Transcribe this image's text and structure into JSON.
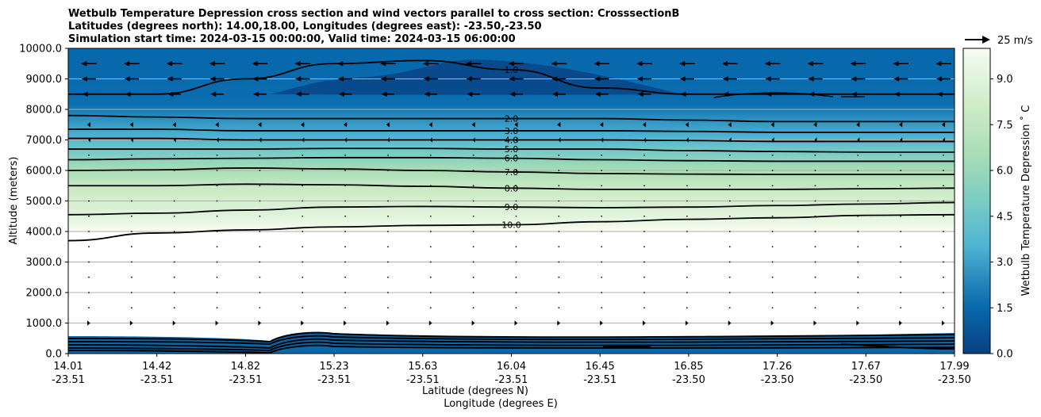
{
  "chart_data": {
    "type": "contour",
    "title_lines": [
      "Wetbulb Temperature Depression cross section and wind vectors parallel to cross section: CrosssectionB",
      "Latitudes (degrees north): 14.00,18.00, Longitudes (degrees east): -23.50,-23.50",
      "Simulation start time: 2024-03-15 00:00:00, Valid time: 2024-03-15 06:00:00"
    ],
    "ylabel": "Altitude (meters)",
    "xlabel_lat": "Latitude (degrees N)",
    "xlabel_lon": "Longitude (degrees E)",
    "ylim": [
      0,
      10000
    ],
    "y_ticks": [
      "0.0",
      "1000.0",
      "2000.0",
      "3000.0",
      "4000.0",
      "5000.0",
      "6000.0",
      "7000.0",
      "8000.0",
      "9000.0",
      "10000.0"
    ],
    "x_ticks": [
      {
        "lat": "14.01",
        "lon": "-23.51"
      },
      {
        "lat": "14.42",
        "lon": "-23.51"
      },
      {
        "lat": "14.82",
        "lon": "-23.51"
      },
      {
        "lat": "15.23",
        "lon": "-23.51"
      },
      {
        "lat": "15.63",
        "lon": "-23.51"
      },
      {
        "lat": "16.04",
        "lon": "-23.51"
      },
      {
        "lat": "16.45",
        "lon": "-23.51"
      },
      {
        "lat": "16.85",
        "lon": "-23.50"
      },
      {
        "lat": "17.26",
        "lon": "-23.50"
      },
      {
        "lat": "17.67",
        "lon": "-23.50"
      },
      {
        "lat": "17.99",
        "lon": "-23.50"
      }
    ],
    "grid": "horizontal",
    "colorbar": {
      "label": "Wetbulb Temperature Depression ˚ C",
      "range": [
        0,
        10
      ],
      "ticks": [
        "0.0",
        "1.5",
        "3.0",
        "4.5",
        "6.0",
        "7.5",
        "9.0"
      ],
      "colormap": "GnBu"
    },
    "quiver_key": "25 m/s",
    "contours": [
      {
        "level": "1.0",
        "y": [
          8500,
          8500,
          9000,
          9500,
          9600,
          9300,
          8700,
          8500,
          8500,
          8500,
          8500
        ]
      },
      {
        "level": "2.0",
        "y": [
          7800,
          7750,
          7700,
          7700,
          7700,
          7700,
          7700,
          7650,
          7600,
          7600,
          7600
        ]
      },
      {
        "level": "3.0",
        "y": [
          7350,
          7350,
          7300,
          7300,
          7300,
          7300,
          7300,
          7280,
          7250,
          7250,
          7250
        ]
      },
      {
        "level": "4.0",
        "y": [
          7050,
          7050,
          7000,
          7000,
          7000,
          7000,
          7000,
          6980,
          6950,
          6950,
          6950
        ]
      },
      {
        "level": "5.0",
        "y": [
          6700,
          6700,
          6700,
          6720,
          6720,
          6700,
          6700,
          6650,
          6620,
          6600,
          6600
        ]
      },
      {
        "level": "6.0",
        "y": [
          6350,
          6380,
          6400,
          6420,
          6420,
          6400,
          6350,
          6320,
          6300,
          6300,
          6300
        ]
      },
      {
        "level": "7.0",
        "y": [
          6000,
          6020,
          6080,
          6050,
          6000,
          5950,
          5900,
          5880,
          5870,
          5870,
          5870
        ]
      },
      {
        "level": "8.0",
        "y": [
          5500,
          5500,
          5550,
          5530,
          5480,
          5420,
          5380,
          5380,
          5380,
          5400,
          5420
        ]
      },
      {
        "level": "9.0",
        "y": [
          4550,
          4600,
          4700,
          4800,
          4820,
          4800,
          4780,
          4800,
          4850,
          4900,
          4950
        ]
      },
      {
        "level": "10.0",
        "y": [
          3700,
          3950,
          4050,
          4150,
          4200,
          4220,
          4320,
          4400,
          4450,
          4530,
          4550
        ]
      }
    ],
    "wind_u_by_level": [
      {
        "z": 9500,
        "u": -14
      },
      {
        "z": 9000,
        "u": -13
      },
      {
        "z": 8500,
        "u": -12
      },
      {
        "z": 7500,
        "u": -3
      },
      {
        "z": 7000,
        "u": -1.2
      },
      {
        "z": 6500,
        "u": -0.8
      },
      {
        "z": 6000,
        "u": -0.5
      },
      {
        "z": 5500,
        "u": -0.4
      },
      {
        "z": 5000,
        "u": -0.3
      },
      {
        "z": 4500,
        "u": -0.3
      },
      {
        "z": 4000,
        "u": 0.3
      },
      {
        "z": 3500,
        "u": 0.3
      },
      {
        "z": 3000,
        "u": 0.2
      },
      {
        "z": 2500,
        "u": 0.3
      },
      {
        "z": 2000,
        "u": 0.4
      },
      {
        "z": 1500,
        "u": 0.8
      },
      {
        "z": 1000,
        "u": 2.5
      }
    ]
  }
}
